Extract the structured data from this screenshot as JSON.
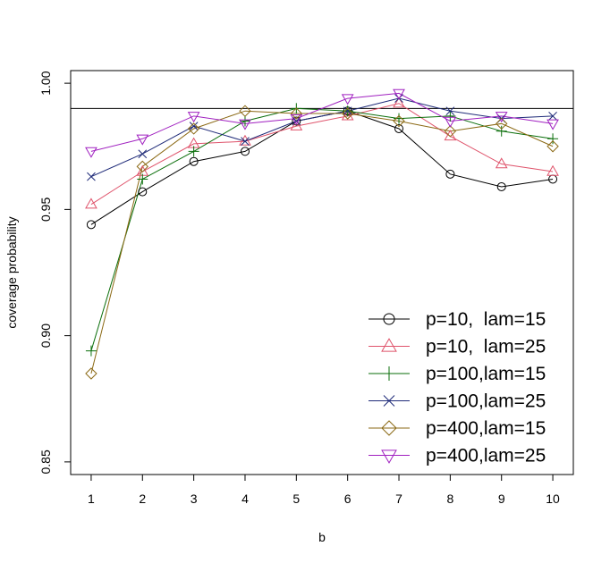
{
  "chart_data": {
    "type": "line",
    "title": "",
    "xlabel": "b",
    "ylabel": "coverage probability",
    "x": [
      1,
      2,
      3,
      4,
      5,
      6,
      7,
      8,
      9,
      10
    ],
    "xlim": [
      0.6,
      10.4
    ],
    "ylim": [
      0.845,
      1.005
    ],
    "xticks": [
      "1",
      "2",
      "3",
      "4",
      "5",
      "6",
      "7",
      "8",
      "9",
      "10"
    ],
    "yticks": [
      {
        "value": 0.85,
        "label": "0.85"
      },
      {
        "value": 0.9,
        "label": "0.90"
      },
      {
        "value": 0.95,
        "label": "0.95"
      },
      {
        "value": 1.0,
        "label": "1.00"
      }
    ],
    "reference_line": 0.99,
    "grid": false,
    "legend_position": "bottom-right",
    "series": [
      {
        "name": "p=10,  lam=15",
        "color": "#000000",
        "marker": "circle",
        "values": [
          0.944,
          0.957,
          0.969,
          0.973,
          0.985,
          0.989,
          0.982,
          0.964,
          0.959,
          0.962
        ]
      },
      {
        "name": "p=10,  lam=25",
        "color": "#df536b",
        "marker": "triangle-up",
        "values": [
          0.952,
          0.965,
          0.976,
          0.977,
          0.983,
          0.987,
          0.992,
          0.979,
          0.968,
          0.965
        ]
      },
      {
        "name": "p=100,lam=15",
        "color": "#0a6e0a",
        "marker": "plus",
        "values": [
          0.894,
          0.962,
          0.973,
          0.985,
          0.99,
          0.989,
          0.986,
          0.987,
          0.981,
          0.978
        ]
      },
      {
        "name": "p=100,lam=25",
        "color": "#1e2a78",
        "marker": "cross",
        "values": [
          0.963,
          0.972,
          0.983,
          0.977,
          0.985,
          0.989,
          0.994,
          0.989,
          0.986,
          0.987
        ]
      },
      {
        "name": "p=400,lam=15",
        "color": "#8b6914",
        "marker": "diamond",
        "values": [
          0.885,
          0.967,
          0.982,
          0.989,
          0.988,
          0.988,
          0.985,
          0.981,
          0.984,
          0.975
        ]
      },
      {
        "name": "p=400,lam=25",
        "color": "#a020c0",
        "marker": "triangle-down",
        "values": [
          0.973,
          0.978,
          0.987,
          0.984,
          0.986,
          0.994,
          0.996,
          0.985,
          0.987,
          0.984
        ]
      }
    ]
  }
}
